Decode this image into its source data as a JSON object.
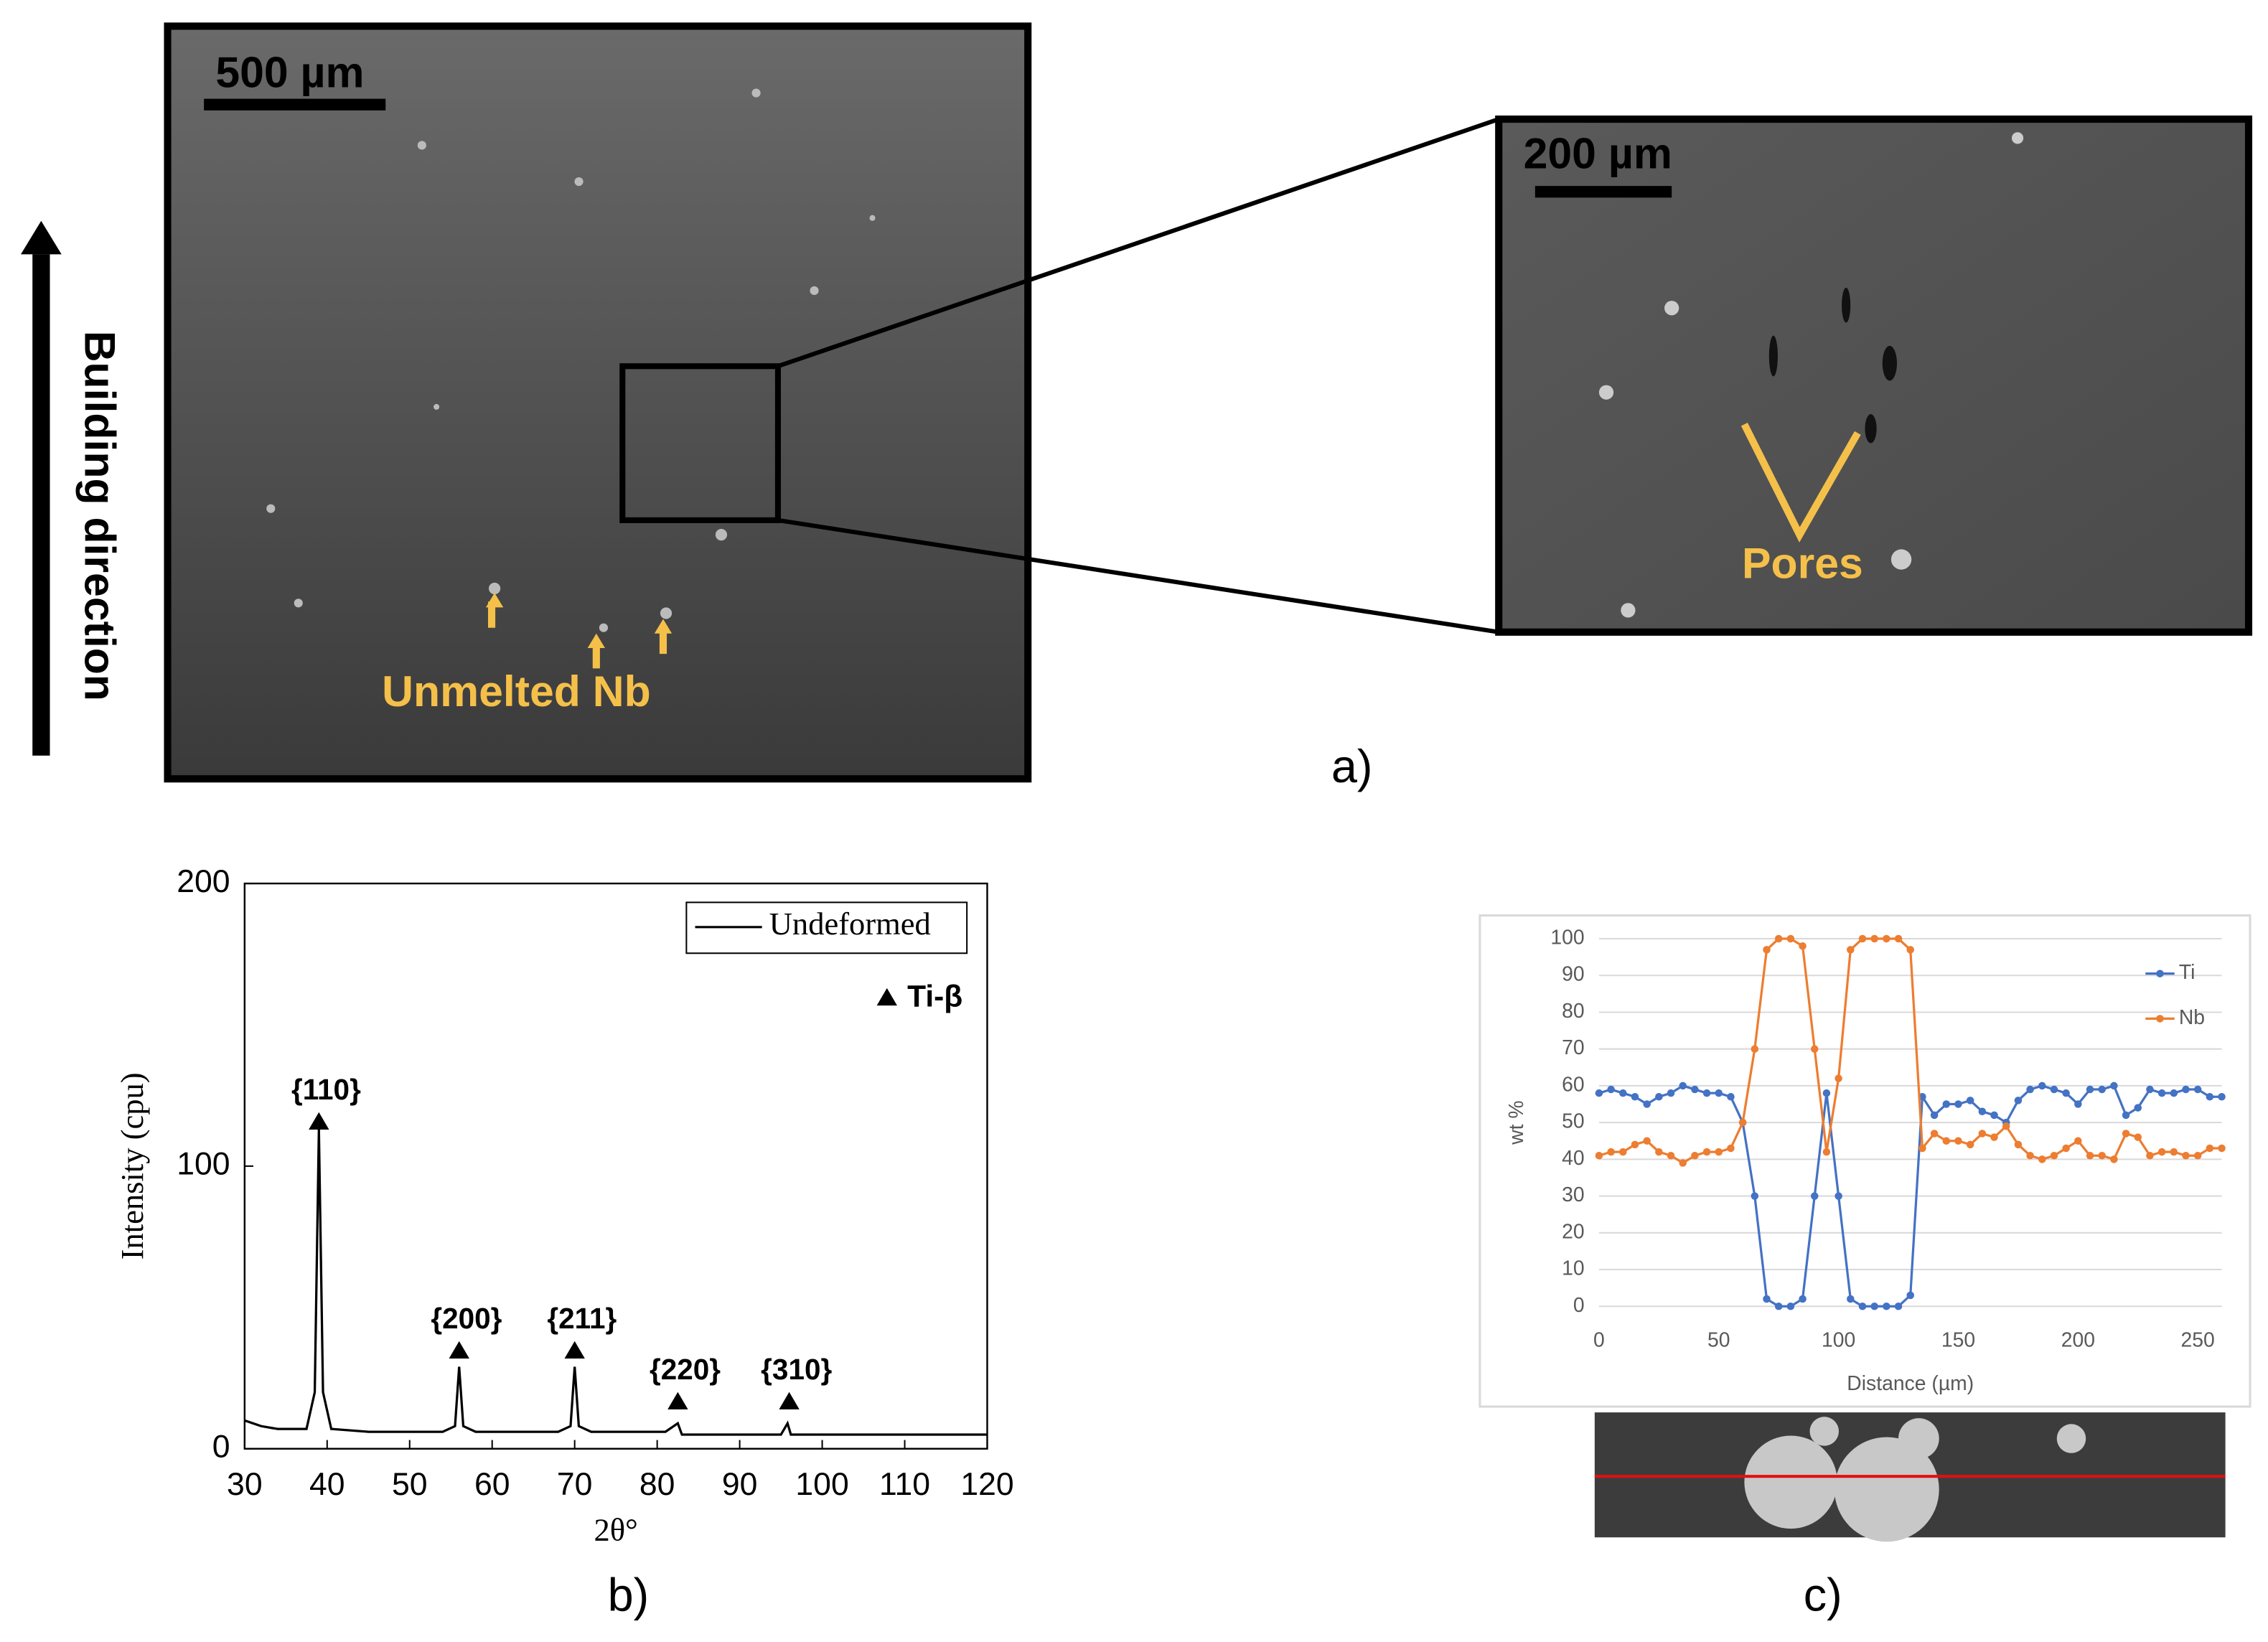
{
  "panels": {
    "a": {
      "label": "a)",
      "scale_bar_left": "500 µm",
      "scale_bar_right": "200 µm",
      "annotation_left": "Unmelted Nb",
      "annotation_right": "Pores",
      "side_label": "Building direction"
    },
    "b": {
      "label": "b)"
    },
    "c": {
      "label": "c)"
    }
  },
  "chart_data": [
    {
      "type": "line",
      "xlabel": "2θ°",
      "ylabel": "Intensity (cpu)",
      "xlim": [
        30,
        120
      ],
      "ylim": [
        0,
        200
      ],
      "xticks": [
        30,
        40,
        50,
        60,
        70,
        80,
        90,
        100,
        110,
        120
      ],
      "yticks": [
        0,
        100,
        200
      ],
      "legend": "upper right",
      "x": [
        30,
        32,
        34,
        36,
        37.5,
        38.5,
        39,
        39.5,
        40.5,
        45,
        50,
        54,
        55.5,
        56,
        56.5,
        58,
        65,
        68,
        69.5,
        70,
        70.5,
        72,
        78,
        81,
        82.5,
        83,
        86,
        90,
        95,
        95.8,
        96.2,
        100,
        110,
        120
      ],
      "series": [
        {
          "name": "Undeformed",
          "color": "#000000",
          "values": [
            10,
            8,
            7,
            7,
            7,
            20,
            113,
            20,
            7,
            6,
            6,
            6,
            8,
            29,
            8,
            6,
            6,
            6,
            8,
            29,
            8,
            6,
            6,
            6,
            9,
            5,
            5,
            5,
            5,
            9,
            5,
            5,
            5,
            5
          ]
        }
      ],
      "marker_legend": "Ti-β",
      "annotations": [
        {
          "text": "{110}",
          "x": 39,
          "y": 116
        },
        {
          "text": "{200}",
          "x": 56,
          "y": 35
        },
        {
          "text": "{211}",
          "x": 70,
          "y": 35
        },
        {
          "text": "{220}",
          "x": 82.5,
          "y": 17
        },
        {
          "text": "{310}",
          "x": 96,
          "y": 17
        }
      ]
    },
    {
      "type": "line",
      "xlabel": "Distance (µm)",
      "ylabel": "wt %",
      "xlim": [
        0,
        260
      ],
      "ylim": [
        0,
        100
      ],
      "xticks": [
        0,
        50,
        100,
        150,
        200,
        250
      ],
      "yticks": [
        0,
        10,
        20,
        30,
        40,
        50,
        60,
        70,
        80,
        90,
        100
      ],
      "grid": true,
      "legend": "upper right",
      "x": [
        0,
        5,
        10,
        15,
        20,
        25,
        30,
        35,
        40,
        45,
        50,
        55,
        60,
        65,
        70,
        75,
        80,
        85,
        90,
        95,
        100,
        105,
        110,
        115,
        120,
        125,
        130,
        135,
        140,
        145,
        150,
        155,
        160,
        165,
        170,
        175,
        180,
        185,
        190,
        195,
        200,
        205,
        210,
        215,
        220,
        225,
        230,
        235,
        240,
        245,
        250,
        255,
        260
      ],
      "series": [
        {
          "name": "Ti",
          "color": "#4472c4",
          "values": [
            58,
            59,
            58,
            57,
            55,
            57,
            58,
            60,
            59,
            58,
            58,
            57,
            50,
            30,
            2,
            0,
            0,
            2,
            30,
            58,
            30,
            2,
            0,
            0,
            0,
            0,
            3,
            57,
            52,
            55,
            55,
            56,
            53,
            52,
            50,
            56,
            59,
            60,
            59,
            58,
            55,
            59,
            59,
            60,
            52,
            54,
            59,
            58,
            58,
            59,
            59,
            57,
            57
          ]
        },
        {
          "name": "Nb",
          "color": "#ed7d31",
          "values": [
            41,
            42,
            42,
            44,
            45,
            42,
            41,
            39,
            41,
            42,
            42,
            43,
            50,
            70,
            97,
            100,
            100,
            98,
            70,
            42,
            62,
            97,
            100,
            100,
            100,
            100,
            97,
            43,
            47,
            45,
            45,
            44,
            47,
            46,
            49,
            44,
            41,
            40,
            41,
            43,
            45,
            41,
            41,
            40,
            47,
            46,
            41,
            42,
            42,
            41,
            41,
            43,
            43
          ]
        }
      ]
    }
  ]
}
